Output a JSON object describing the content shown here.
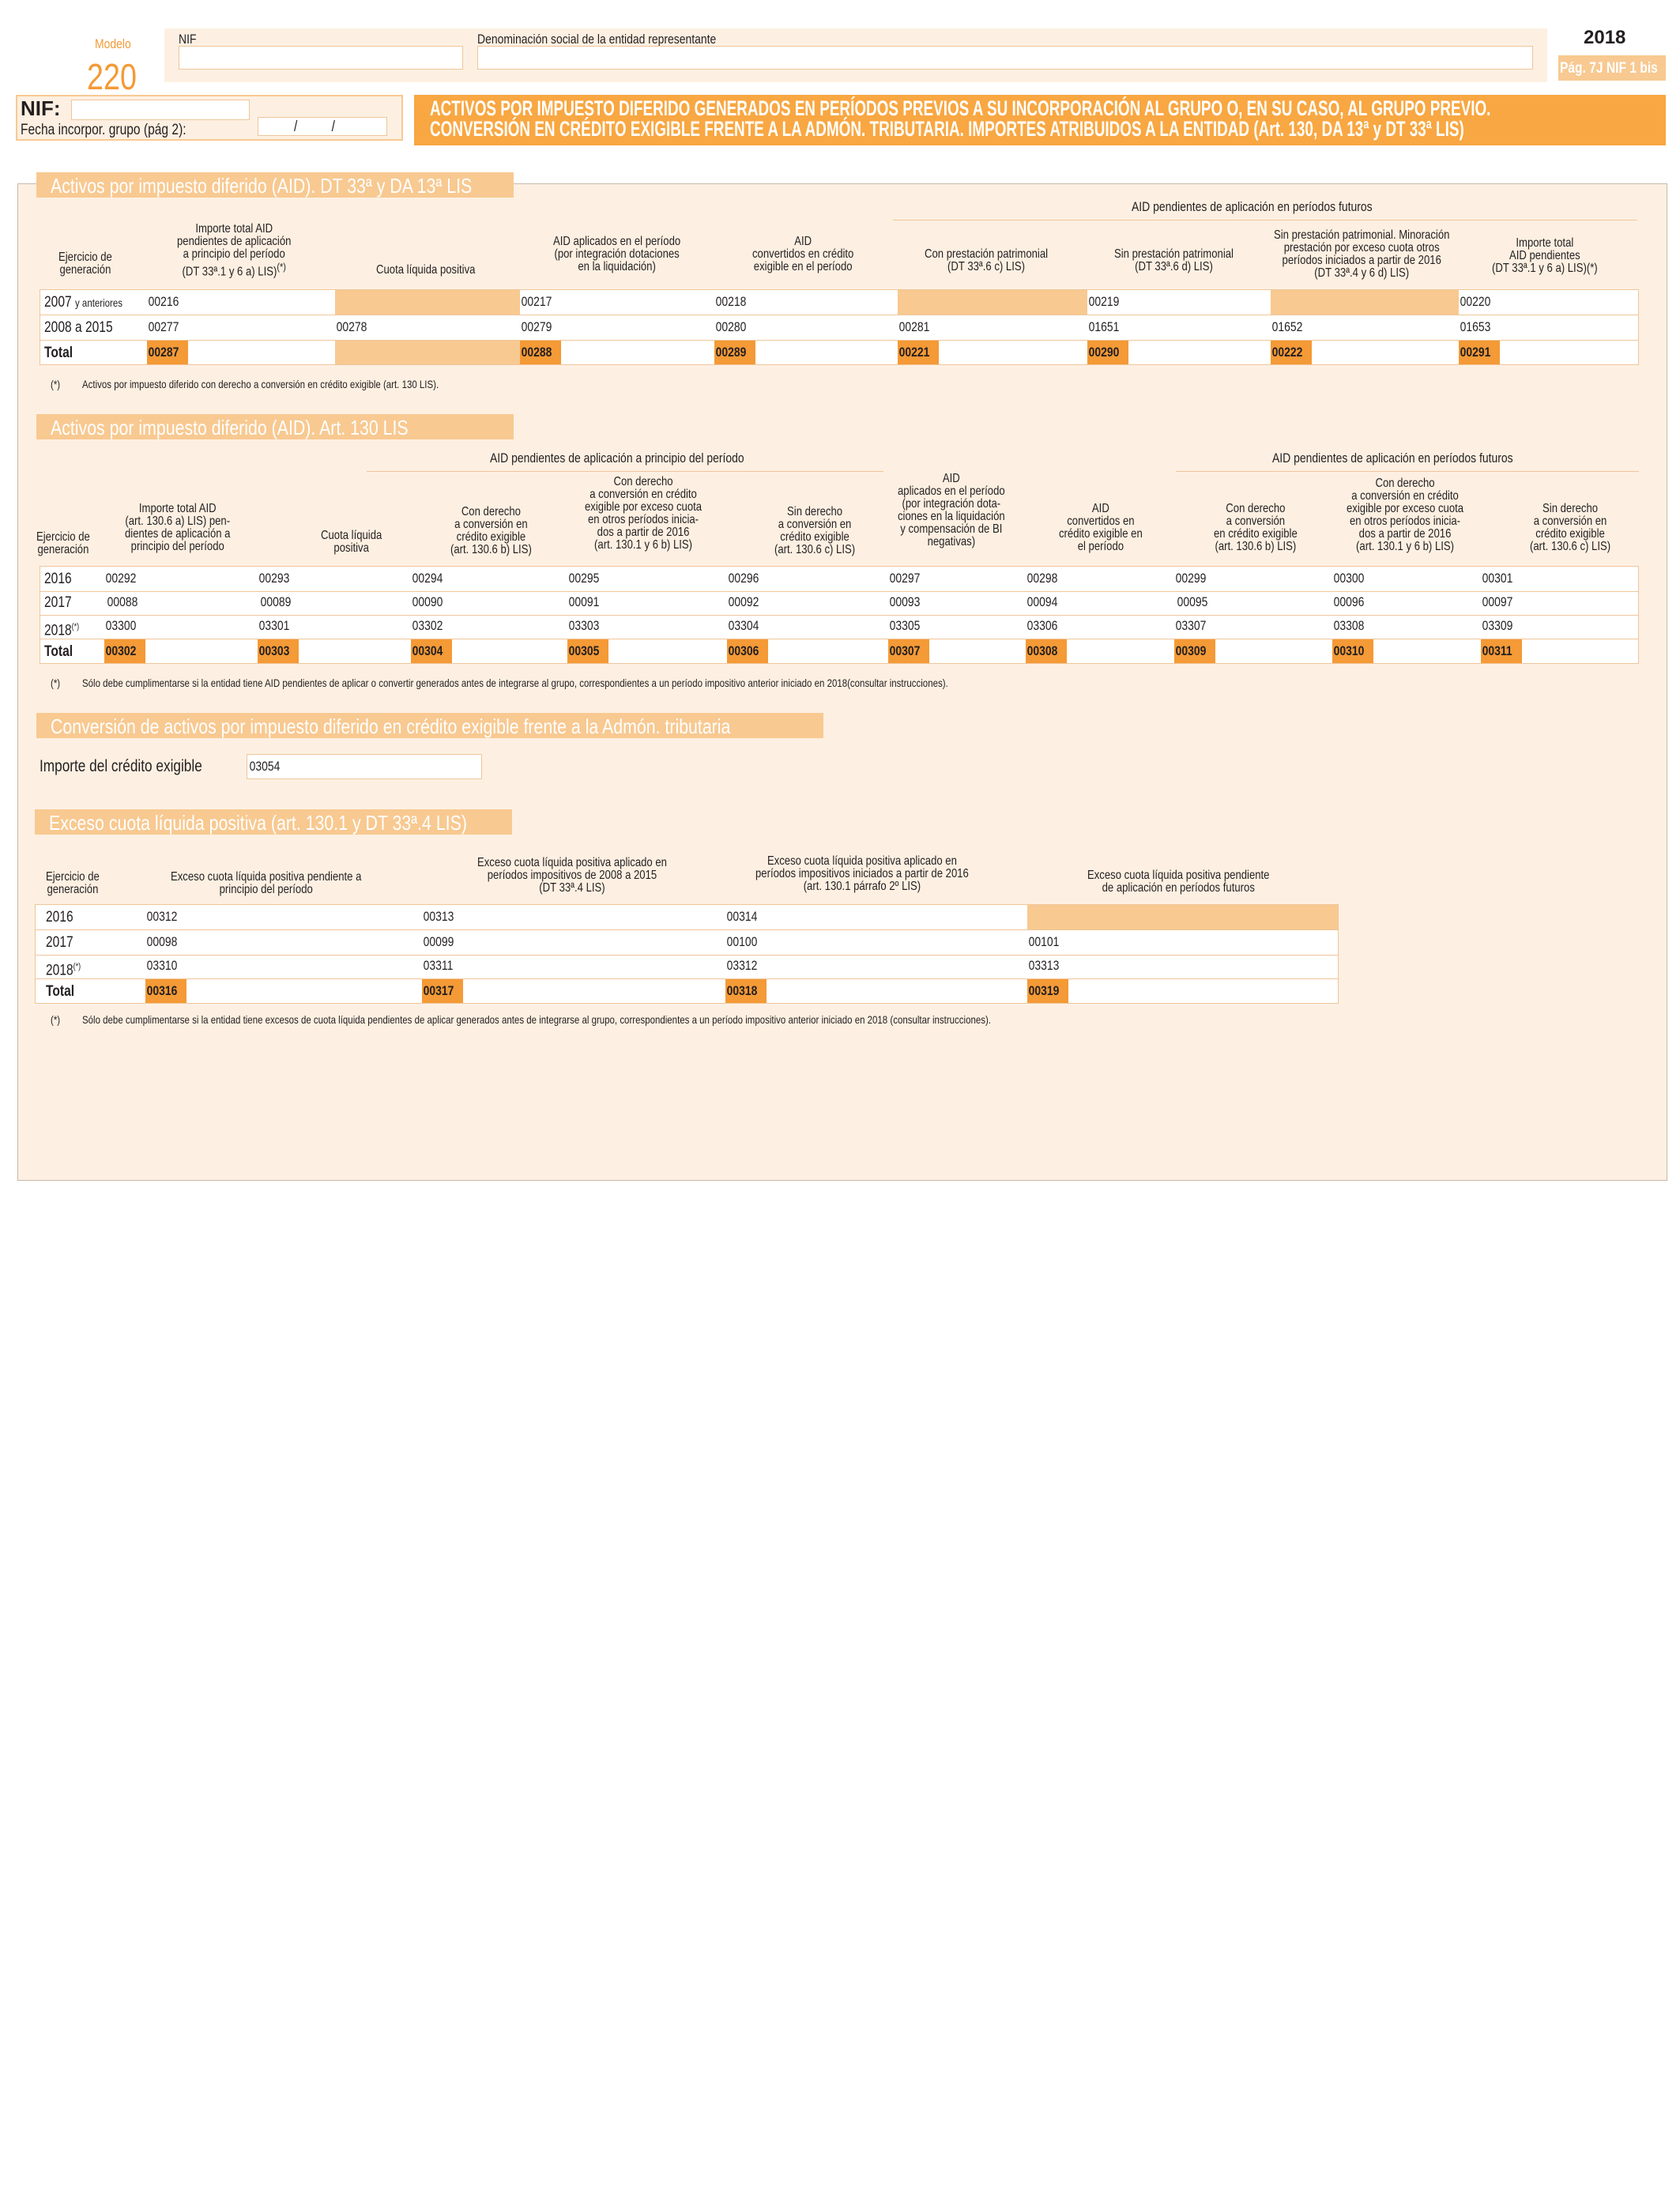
{
  "header": {
    "modelo_label": "Modelo",
    "modelo_number": "220",
    "nif_small_label": "NIF",
    "denominacion_label": "Denominación social de la entidad representante",
    "year": "2018",
    "page_ref": "Pág. 7J NIF 1 bis",
    "nif_label": "NIF:",
    "fecha_label": "Fecha incorpor. grupo  (pág 2):",
    "date_sep": "/          /",
    "title_line1": "ACTIVOS POR IMPUESTO DIFERIDO GENERADOS EN PERÍODOS PREVIOS A SU INCORPORACIÓN AL GRUPO O, EN SU CASO, AL GRUPO PREVIO.",
    "title_line2": "CONVERSIÓN EN CRÉDITO EXIGIBLE FRENTE A LA ADMÓN. TRIBUTARIA. IMPORTES ATRIBUIDOS A LA ENTIDAD (Art. 130, DA 13ª y DT 33ª LIS)"
  },
  "section1": {
    "title": "Activos por impuesto diferido (AID). DT 33ª y DA 13ª LIS",
    "group_header": "AID pendientes de aplicación en períodos futuros",
    "headers": {
      "ejercicio": "Ejercicio de generación",
      "importe_total": "Importe total AID pendientes de aplicación a principio del período (DT 33ª.1 y 6 a) LIS)(*)",
      "cuota": "Cuota líquida positiva",
      "aplicados": "AID aplicados en el período (por integración dotaciones en la liquidación)",
      "convertidos": "AID convertidos en crédito exigible en el período",
      "con_prest": "Con prestación patrimonial (DT 33ª.6 c) LIS)",
      "sin_prest": "Sin prestación patrimonial (DT 33ª.6 d) LIS)",
      "sin_prest_min": "Sin prestación patrimonial. Minoración prestación por exceso cuota otros períodos iniciados a partir de 2016 (DT 33ª.4 y 6 d) LIS)",
      "importe_total2": "Importe total AID pendientes (DT 33ª.1 y 6 a) LIS)(*)"
    },
    "rows": [
      {
        "label": "2007",
        "label_small": "y anteriores",
        "codes": [
          "00216",
          "",
          "00217",
          "00218",
          "",
          "00219",
          "",
          "00220"
        ]
      },
      {
        "label": "2008 a 2015",
        "label_small": "",
        "codes": [
          "00277",
          "00278",
          "00279",
          "00280",
          "00281",
          "01651",
          "01652",
          "01653"
        ]
      },
      {
        "label": "Total",
        "label_small": "",
        "codes": [
          "00287",
          "",
          "00288",
          "00289",
          "00221",
          "00290",
          "00222",
          "00291"
        ]
      }
    ],
    "note_mark": "(*)",
    "note": "Activos por impuesto diferido con derecho a conversión en crédito exigible (art. 130 LIS)."
  },
  "section2": {
    "title": "Activos por impuesto diferido (AID). Art. 130 LIS",
    "group1": "AID pendientes de aplicación a principio del período",
    "group2": "AID pendientes de aplicación en períodos futuros",
    "headers": {
      "ejercicio": "Ejercicio de generación",
      "importe_total": "Importe total AID (art. 130.6 a) LIS) pen- dientes de aplicación a principio del período",
      "cuota": "Cuota líquida positiva",
      "con_derecho": "Con derecho a conversión en crédito exigible (art. 130.6 b) LIS)",
      "con_derecho_exceso": "Con derecho a conversión en crédito exigible por exceso cuota en otros períodos inicia- dos a partir de 2016 (art. 130.1 y 6 b) LIS)",
      "sin_derecho": "Sin derecho a conversión en crédito exigible (art. 130.6 c) LIS)",
      "aplicados": "AID aplicados en el período (por integración dota- ciones en la liquidación y compensación de BI negativas)",
      "convertidos": "AID convertidos en crédito exigible en el período",
      "fut_con": "Con derecho a conversión en crédito exigible (art. 130.6 b) LIS)",
      "fut_con_exceso": "Con derecho a conversión en crédito exigible por exceso cuota en otros períodos inicia- dos a partir de 2016 (art. 130.1 y 6 b) LIS)",
      "fut_sin": "Sin derecho a conversión en crédito exigible (art. 130.6 c) LIS)"
    },
    "rows": [
      {
        "label": "2016",
        "sup": "",
        "codes": [
          "00292",
          "00293",
          "00294",
          "00295",
          "00296",
          "00297",
          "00298",
          "00299",
          "00300",
          "00301"
        ]
      },
      {
        "label": "2017",
        "sup": "",
        "codes": [
          "00088",
          "00089",
          "00090",
          "00091",
          "00092",
          "00093",
          "00094",
          "00095",
          "00096",
          "00097"
        ]
      },
      {
        "label": "2018",
        "sup": "(*)",
        "codes": [
          "03300",
          "03301",
          "03302",
          "03303",
          "03304",
          "03305",
          "03306",
          "03307",
          "03308",
          "03309"
        ]
      },
      {
        "label": "Total",
        "sup": "",
        "codes": [
          "00302",
          "00303",
          "00304",
          "00305",
          "00306",
          "00307",
          "00308",
          "00309",
          "00310",
          "00311"
        ]
      }
    ],
    "note_mark": "(*)",
    "note": "Sólo debe cumplimentarse si la entidad tiene AID pendientes de aplicar o convertir generados antes de integrarse al grupo, correspondientes a un período impositivo anterior iniciado en 2018(consultar instrucciones)."
  },
  "section3": {
    "title": "Conversión de activos por impuesto diferido en crédito exigible frente a la Admón. tributaria",
    "label": "Importe del crédito exigible",
    "code": "03054"
  },
  "section4": {
    "title": "Exceso cuota líquida positiva (art. 130.1 y DT 33ª.4 LIS)",
    "headers": {
      "ejercicio": "Ejercicio de generación",
      "pendiente": "Exceso cuota líquida positiva pendiente a principio del período",
      "aplicado_2008": "Exceso cuota líquida positiva aplicado en períodos impositivos de 2008 a 2015 (DT 33ª.4 LIS)",
      "aplicado_2016": "Exceso cuota líquida positiva aplicado en períodos impositivos iniciados a partir de 2016 (art. 130.1 párrafo 2º LIS)",
      "pendiente_fut": "Exceso cuota líquida positiva pendiente de aplicación en períodos futuros"
    },
    "rows": [
      {
        "label": "2016",
        "sup": "",
        "codes": [
          "00312",
          "00313",
          "00314",
          ""
        ]
      },
      {
        "label": "2017",
        "sup": "",
        "codes": [
          "00098",
          "00099",
          "00100",
          "00101"
        ]
      },
      {
        "label": "2018",
        "sup": "(*)",
        "codes": [
          "03310",
          "03311",
          "03312",
          "03313"
        ]
      },
      {
        "label": "Total",
        "sup": "",
        "codes": [
          "00316",
          "00317",
          "00318",
          "00319"
        ]
      }
    ],
    "note_mark": "(*)",
    "note": "Sólo debe cumplimentarse si la entidad tiene excesos de cuota líquida pendientes de aplicar generados antes de integrarse al grupo, correspondientes a un período impositivo anterior iniciado en 2018 (consultar instrucciones)."
  }
}
